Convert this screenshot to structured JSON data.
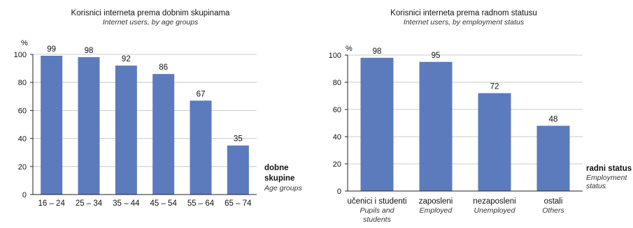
{
  "chart_data": [
    {
      "type": "bar",
      "title": "Korisnici interneta prema dobnim skupinama",
      "subtitle": "Internet users, by age groups",
      "ylabel": "%",
      "xlabel": "dobne skupine",
      "xlabel_sub": "Age groups",
      "ylim": [
        0,
        100
      ],
      "yticks": [
        "0",
        "20",
        "40",
        "60",
        "80",
        "100"
      ],
      "categories": [
        "16 – 24",
        "25 – 34",
        "35 – 44",
        "45 – 54",
        "55 – 64",
        "65 – 74"
      ],
      "values": [
        99,
        98,
        92,
        86,
        67,
        35
      ],
      "bar_color": "#5b7bbd",
      "grid": true
    },
    {
      "type": "bar",
      "title": "Korisnici interneta prema radnom statusu",
      "subtitle": "Internet users, by employment status",
      "ylabel": "%",
      "xlabel": "radni status",
      "xlabel_sub": "Employment status",
      "ylim": [
        0,
        100
      ],
      "yticks": [
        "0",
        "20",
        "40",
        "60",
        "80",
        "100"
      ],
      "categories": [
        "učenici i studenti",
        "zaposleni",
        "nezaposleni",
        "ostali"
      ],
      "categories_sub": [
        "Pupils and students",
        "Employed",
        "Unemployed",
        "Others"
      ],
      "values": [
        98,
        95,
        72,
        48
      ],
      "bar_color": "#5b7bbd",
      "grid": true
    }
  ]
}
